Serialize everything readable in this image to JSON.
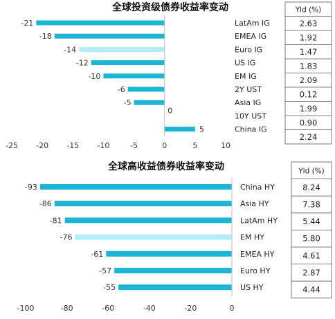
{
  "chart_data": [
    {
      "type": "bar",
      "orientation": "horizontal",
      "title": "全球投资级债券收益率变动",
      "categories": [
        "LatAm IG",
        "EMEA IG",
        "Euro IG",
        "US IG",
        "EM IG",
        "2Y UST",
        "Asia IG",
        "10Y UST",
        "China IG"
      ],
      "values": [
        -21,
        -18,
        -14,
        -12,
        -10,
        -6,
        -5,
        0,
        5
      ],
      "highlight": "Euro IG",
      "xlim": [
        -25,
        10
      ],
      "xticks": [
        "-25",
        "-20",
        "-15",
        "-10",
        "-5",
        "0",
        "5",
        "10"
      ],
      "table": {
        "header": "Yld (%)",
        "values": [
          "2.63",
          "1.92",
          "1.47",
          "1.83",
          "2.09",
          "0.12",
          "1.99",
          "0.90",
          "2.24"
        ]
      },
      "colors": {
        "bar": "#1db5d6",
        "highlight": "#b3ecf9"
      }
    },
    {
      "type": "bar",
      "orientation": "horizontal",
      "title": "全球高收益债券收益率变动",
      "categories": [
        "China HY",
        "Asia HY",
        "LatAm HY",
        "EM HY",
        "EMEA HY",
        "Euro HY",
        "US HY"
      ],
      "values": [
        -93,
        -86,
        -81,
        -76,
        -61,
        -57,
        -55
      ],
      "highlight": "EM HY",
      "xlim": [
        -100,
        0
      ],
      "xticks": [
        "-100",
        "-80",
        "-60",
        "-40",
        "-20",
        "0"
      ],
      "table": {
        "header": "Yld (%)",
        "values": [
          "8.24",
          "7.38",
          "5.44",
          "5.80",
          "4.61",
          "2.87",
          "4.44"
        ]
      },
      "colors": {
        "bar": "#1db5d6",
        "highlight": "#b3ecf9"
      }
    }
  ]
}
